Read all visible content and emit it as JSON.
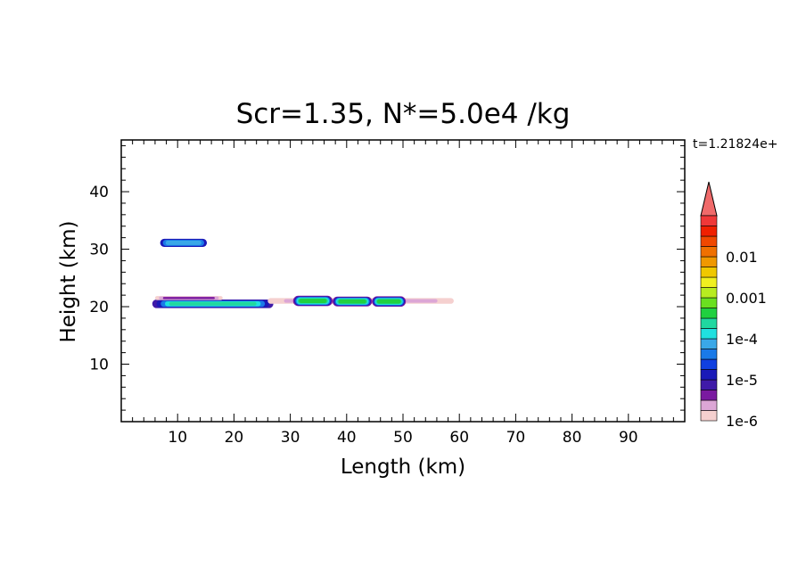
{
  "chart_data": {
    "type": "heatmap",
    "title": "Scr=1.35, N*=5.0e4 /kg",
    "time_label": "t=1.21824e+",
    "xlabel": "Length  (km)",
    "ylabel": "Height  (km)",
    "xlim": [
      0,
      100
    ],
    "ylim": [
      0,
      49
    ],
    "x_ticks": [
      10,
      20,
      30,
      40,
      50,
      60,
      70,
      80,
      90
    ],
    "y_ticks": [
      10,
      20,
      30,
      40
    ],
    "x_tick_labels": [
      "10",
      "20",
      "30",
      "40",
      "50",
      "60",
      "70",
      "80",
      "90"
    ],
    "y_tick_labels": [
      "10",
      "20",
      "30",
      "40"
    ],
    "grid": false,
    "colorbar": {
      "colors": [
        "#f5d0cf",
        "#dca6d6",
        "#7a1aa0",
        "#3f1aa8",
        "#1a1ab8",
        "#1040e0",
        "#1a7ae8",
        "#3aa8e8",
        "#20e0e0",
        "#20d8a0",
        "#20d040",
        "#6ae020",
        "#b8ec20",
        "#f0f020",
        "#f0c800",
        "#f09800",
        "#f07000",
        "#f04800",
        "#f02000",
        "#f03838"
      ],
      "extend_color": "#f06a6a",
      "labels": [
        {
          "text": "1e-6",
          "level": 0
        },
        {
          "text": "1e-5",
          "level": 4
        },
        {
          "text": "1e-4",
          "level": 8
        },
        {
          "text": "0.001",
          "level": 12
        },
        {
          "text": "0.01",
          "level": 16
        }
      ]
    },
    "features": [
      {
        "name": "upper-patch",
        "x": [
          6.9,
          15.2
        ],
        "y_center": 31.1,
        "half_height": 0.7,
        "levels": [
          4,
          6,
          7
        ]
      },
      {
        "name": "main-band",
        "x": [
          5.5,
          27
        ],
        "y_center": 20.5,
        "half_height": 0.75,
        "levels": [
          3,
          4,
          6,
          8,
          9
        ]
      },
      {
        "name": "band-top-haze",
        "x": [
          6,
          18
        ],
        "y_center": 21.5,
        "half_height": 0.35,
        "levels": [
          0,
          1,
          2
        ]
      },
      {
        "name": "trailing-haze",
        "x": [
          26,
          59
        ],
        "y_center": 21.0,
        "half_height": 0.5,
        "levels": [
          0,
          1
        ]
      },
      {
        "name": "blob-1",
        "x": [
          30.5,
          37.5
        ],
        "y_center": 21.0,
        "half_height": 0.9,
        "levels": [
          2,
          4,
          6,
          8,
          9,
          10
        ]
      },
      {
        "name": "blob-2",
        "x": [
          37.5,
          44.5
        ],
        "y_center": 20.9,
        "half_height": 0.85,
        "levels": [
          2,
          4,
          6,
          8,
          9,
          10
        ]
      },
      {
        "name": "blob-3",
        "x": [
          44.5,
          50.5
        ],
        "y_center": 20.9,
        "half_height": 0.9,
        "levels": [
          2,
          4,
          6,
          8,
          9,
          10
        ]
      }
    ]
  }
}
